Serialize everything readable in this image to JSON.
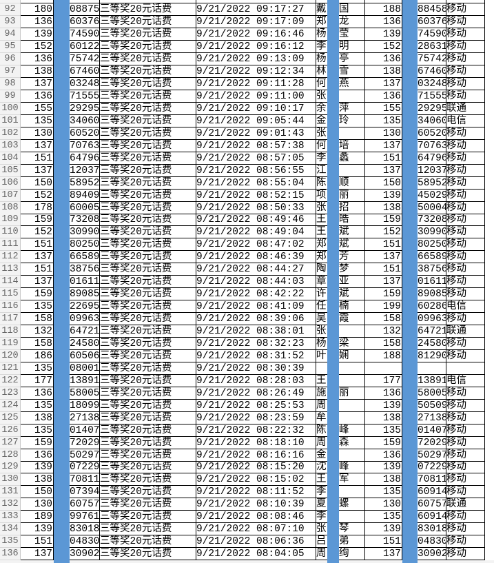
{
  "colors": {
    "highlight_bar": "#5b97d5",
    "row_header_bg": "#f3f3f3"
  },
  "rows": [
    {
      "n": "92",
      "a": "180",
      "b": "08875",
      "c": "三等奖20元话费",
      "d": "9/21/2022  09:17:27",
      "s": "戴",
      "g": "国",
      "f": "188",
      "h": "88458",
      "k": "移动"
    },
    {
      "n": "93",
      "a": "136",
      "b": "60376",
      "c": "三等奖20元话费",
      "d": "9/21/2022  09:17:09",
      "s": "郑",
      "g": "龙",
      "f": "136",
      "h": "60376",
      "k": "移动"
    },
    {
      "n": "94",
      "a": "139",
      "b": "74590",
      "c": "三等奖20元话费",
      "d": "9/21/2022  09:16:46",
      "s": "杨",
      "g": "莹",
      "f": "139",
      "h": "74590",
      "k": "移动"
    },
    {
      "n": "95",
      "a": "152",
      "b": "60122",
      "c": "三等奖20元话费",
      "d": "9/21/2022  09:16:12",
      "s": "李",
      "g": "明",
      "f": "152",
      "h": "28631",
      "k": "移动"
    },
    {
      "n": "96",
      "a": "136",
      "b": "75742",
      "c": "三等奖20元话费",
      "d": "9/21/2022  09:13:09",
      "s": "杨",
      "g": "亭",
      "f": "136",
      "h": "75742",
      "k": "移动"
    },
    {
      "n": "97",
      "a": "138",
      "b": "67460",
      "c": "三等奖20元话费",
      "d": "9/21/2022  09:12:34",
      "s": "林",
      "g": "雪",
      "f": "138",
      "h": "67460",
      "k": "移动"
    },
    {
      "n": "98",
      "a": "137",
      "b": "03248",
      "c": "三等奖20元话费",
      "d": "9/21/2022  09:11:28",
      "s": "何",
      "g": "燕",
      "f": "137",
      "h": "03248",
      "k": "移动"
    },
    {
      "n": "99",
      "a": "136",
      "b": "71555",
      "c": "三等奖20元话费",
      "d": "9/21/2022  09:11:00",
      "s": "张",
      "g": "",
      "f": "136",
      "h": "71555",
      "k": "移动"
    },
    {
      "n": "100",
      "a": "155",
      "b": "29295",
      "c": "三等奖20元话费",
      "d": "9/21/2022  09:10:17",
      "s": "余",
      "g": "萍",
      "f": "155",
      "h": "29295",
      "k": "联通"
    },
    {
      "n": "101",
      "a": "135",
      "b": "34060",
      "c": "三等奖20元话费",
      "d": "9/21/2022  09:05:44",
      "s": "金",
      "g": "玲",
      "f": "135",
      "h": "34060",
      "k": "电信"
    },
    {
      "n": "102",
      "a": "130",
      "b": "60520",
      "c": "三等奖20元话费",
      "d": "9/21/2022  09:01:43",
      "s": "张",
      "g": "",
      "f": "130",
      "h": "60520",
      "k": "移动"
    },
    {
      "n": "103",
      "a": "137",
      "b": "70763",
      "c": "三等奖20元话费",
      "d": "9/21/2022  08:57:38",
      "s": "何",
      "g": "培",
      "f": "137",
      "h": "70763",
      "k": "移动"
    },
    {
      "n": "104",
      "a": "151",
      "b": "64796",
      "c": "三等奖20元话费",
      "d": "9/21/2022  08:57:05",
      "s": "李",
      "g": "蠡",
      "f": "151",
      "h": "64796",
      "k": "移动"
    },
    {
      "n": "105",
      "a": "137",
      "b": "12037",
      "c": "三等奖20元话费",
      "d": "9/21/2022  08:56:55",
      "s": "江",
      "g": "",
      "f": "137",
      "h": "12037",
      "k": "移动"
    },
    {
      "n": "106",
      "a": "150",
      "b": "58952",
      "c": "三等奖20元话费",
      "d": "9/21/2022  08:55:04",
      "s": "陈",
      "g": "顺",
      "f": "150",
      "h": "58952",
      "k": "移动"
    },
    {
      "n": "107",
      "a": "152",
      "b": "89409",
      "c": "三等奖20元话费",
      "d": "9/21/2022  08:52:15",
      "s": "项",
      "g": "丽",
      "f": "139",
      "h": "45029",
      "k": "移动"
    },
    {
      "n": "108",
      "a": "178",
      "b": "60005",
      "c": "三等奖20元话费",
      "d": "9/21/2022  08:50:33",
      "s": "张",
      "g": "招",
      "f": "138",
      "h": "50004",
      "k": "移动"
    },
    {
      "n": "109",
      "a": "159",
      "b": "73208",
      "c": "三等奖20元话费",
      "d": "9/21/2022  08:49:46",
      "s": "王",
      "g": "皓",
      "f": "159",
      "h": "73208",
      "k": "移动"
    },
    {
      "n": "110",
      "a": "152",
      "b": "30990",
      "c": "三等奖20元话费",
      "d": "9/21/2022  08:49:04",
      "s": "王",
      "g": "斌",
      "f": "152",
      "h": "30990",
      "k": "移动"
    },
    {
      "n": "111",
      "a": "151",
      "b": "80250",
      "c": "三等奖20元话费",
      "d": "9/21/2022  08:47:02",
      "s": "郑",
      "g": "斌",
      "f": "151",
      "h": "80250",
      "k": "移动"
    },
    {
      "n": "112",
      "a": "137",
      "b": "66589",
      "c": "三等奖20元话费",
      "d": "9/21/2022  08:46:39",
      "s": "郑",
      "g": "芳",
      "f": "137",
      "h": "66589",
      "k": "移动"
    },
    {
      "n": "113",
      "a": "151",
      "b": "38756",
      "c": "三等奖20元话费",
      "d": "9/21/2022  08:44:27",
      "s": "陶",
      "g": "梦",
      "f": "151",
      "h": "38756",
      "k": "移动"
    },
    {
      "n": "114",
      "a": "137",
      "b": "01611",
      "c": "三等奖20元话费",
      "d": "9/21/2022  08:44:03",
      "s": "章",
      "g": "亚",
      "f": "137",
      "h": "01611",
      "k": "移动"
    },
    {
      "n": "115",
      "a": "159",
      "b": "89085",
      "c": "三等奖20元话费",
      "d": "9/21/2022  08:42:22",
      "s": "许",
      "g": "斌",
      "f": "159",
      "h": "89085",
      "k": "移动"
    },
    {
      "n": "116",
      "a": "135",
      "b": "22695",
      "c": "三等奖20元话费",
      "d": "9/21/2022  08:41:09",
      "s": "任",
      "g": "楠",
      "f": "199",
      "h": "60286",
      "k": "电信"
    },
    {
      "n": "117",
      "a": "158",
      "b": "09963",
      "c": "三等奖20元话费",
      "d": "9/21/2022  08:39:06",
      "s": "吴",
      "g": "霞",
      "f": "158",
      "h": "09963",
      "k": "移动"
    },
    {
      "n": "118",
      "a": "132",
      "b": "64721",
      "c": "三等奖20元话费",
      "d": "9/21/2022  08:38:01",
      "s": "张",
      "g": "",
      "f": "132",
      "h": "64721",
      "k": "联通"
    },
    {
      "n": "119",
      "a": "158",
      "b": "24580",
      "c": "三等奖20元话费",
      "d": "9/21/2022  08:32:23",
      "s": "杨",
      "g": "梁",
      "f": "158",
      "h": "24580",
      "k": "移动"
    },
    {
      "n": "120",
      "a": "186",
      "b": "60506",
      "c": "三等奖20元话费",
      "d": "9/21/2022  08:31:52",
      "s": "叶",
      "g": "娴",
      "f": "188",
      "h": "81290",
      "k": "移动"
    },
    {
      "n": "121",
      "a": "135",
      "b": "08001",
      "c": "三等奖20元话费",
      "d": "9/21/2022  08:30:39",
      "s": "",
      "g": "",
      "f": "",
      "h": "",
      "k": ""
    },
    {
      "n": "122",
      "a": "177",
      "b": "13891",
      "c": "三等奖20元话费",
      "d": "9/21/2022  08:28:03",
      "s": "王",
      "g": "",
      "f": "177",
      "h": "13891",
      "k": "电信"
    },
    {
      "n": "123",
      "a": "136",
      "b": "58005",
      "c": "三等奖20元话费",
      "d": "9/21/2022  08:26:49",
      "s": "施",
      "g": "丽",
      "f": "136",
      "h": "58005",
      "k": "移动"
    },
    {
      "n": "124",
      "a": "135",
      "b": "18099",
      "c": "三等奖20元话费",
      "d": "9/21/2022  08:25:53",
      "s": "周",
      "g": "",
      "f": "139",
      "h": "50509",
      "k": "移动"
    },
    {
      "n": "125",
      "a": "138",
      "b": "27138",
      "c": "三等奖20元话费",
      "d": "9/21/2022  08:23:59",
      "s": "牟",
      "g": "",
      "f": "138",
      "h": "27138",
      "k": "移动"
    },
    {
      "n": "126",
      "a": "135",
      "b": "01407",
      "c": "三等奖20元话费",
      "d": "9/21/2022  08:22:32",
      "s": "陈",
      "g": "峰",
      "f": "135",
      "h": "01407",
      "k": "移动"
    },
    {
      "n": "127",
      "a": "159",
      "b": "72029",
      "c": "三等奖20元话费",
      "d": "9/21/2022  08:18:10",
      "s": "周",
      "g": "森",
      "f": "159",
      "h": "72029",
      "k": "移动"
    },
    {
      "n": "128",
      "a": "136",
      "b": "50297",
      "c": "三等奖20元话费",
      "d": "9/21/2022  08:16:16",
      "s": "金",
      "g": "",
      "f": "136",
      "h": "50297",
      "k": "移动"
    },
    {
      "n": "129",
      "a": "139",
      "b": "07229",
      "c": "三等奖20元话费",
      "d": "9/21/2022  08:15:20",
      "s": "沈",
      "g": "峰",
      "f": "139",
      "h": "07229",
      "k": "移动"
    },
    {
      "n": "130",
      "a": "138",
      "b": "70811",
      "c": "三等奖20元话费",
      "d": "9/21/2022  08:15:02",
      "s": "王",
      "g": "军",
      "f": "138",
      "h": "70811",
      "k": "移动"
    },
    {
      "n": "131",
      "a": "150",
      "b": "07394",
      "c": "三等奖20元话费",
      "d": "9/21/2022  08:11:52",
      "s": "李",
      "g": "",
      "f": "135",
      "h": "60914",
      "k": "移动"
    },
    {
      "n": "132",
      "a": "130",
      "b": "60757",
      "c": "三等奖20元话费",
      "d": "9/21/2022  08:10:39",
      "s": "夏",
      "g": "螺",
      "f": "130",
      "h": "60757",
      "k": "联通"
    },
    {
      "n": "133",
      "a": "189",
      "b": "99761",
      "c": "三等奖20元话费",
      "d": "9/21/2022  08:08:46",
      "s": "李",
      "g": "",
      "f": "135",
      "h": "60914",
      "k": "移动"
    },
    {
      "n": "134",
      "a": "139",
      "b": "83018",
      "c": "三等奖20元话费",
      "d": "9/21/2022  08:07:10",
      "s": "张",
      "g": "琴",
      "f": "139",
      "h": "83018",
      "k": "移动"
    },
    {
      "n": "135",
      "a": "151",
      "b": "04830",
      "c": "三等奖20元话费",
      "d": "9/21/2022  08:06:36",
      "s": "吕",
      "g": "弟",
      "f": "151",
      "h": "04830",
      "k": "移动"
    },
    {
      "n": "136",
      "a": "137",
      "b": "30902",
      "c": "三等奖20元话费",
      "d": "9/21/2022  08:04:05",
      "s": "周",
      "g": "绚",
      "f": "137",
      "h": "30902",
      "k": "移动"
    }
  ]
}
